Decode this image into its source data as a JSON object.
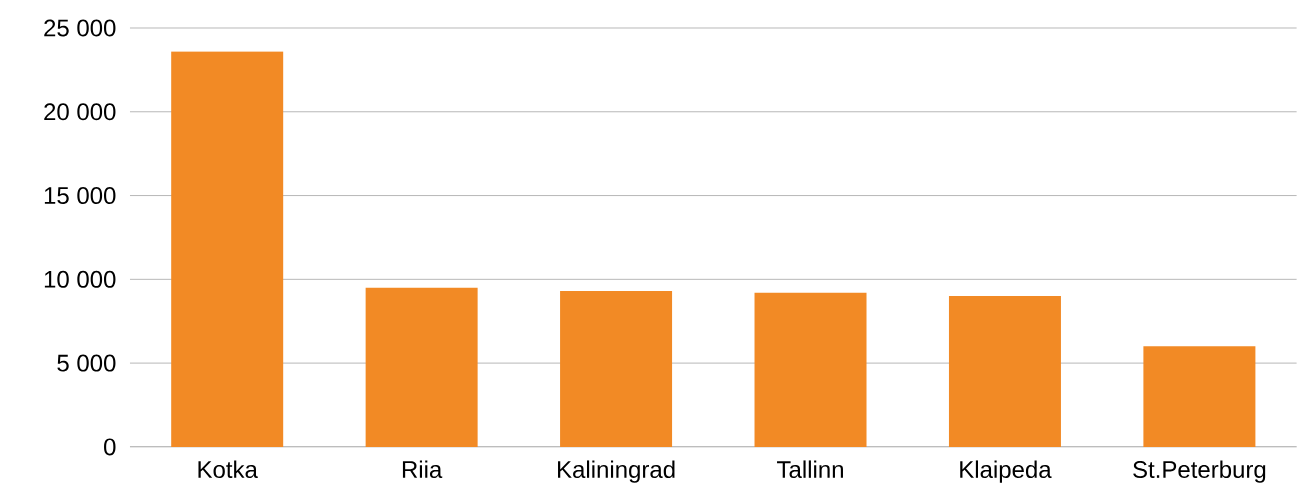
{
  "chart_data": {
    "type": "bar",
    "categories": [
      "Kotka",
      "Riia",
      "Kaliningrad",
      "Tallinn",
      "Klaipeda",
      "St.Peterburg"
    ],
    "values": [
      23600,
      9500,
      9300,
      9200,
      9000,
      6000
    ],
    "color": "#f28a25",
    "ylim": [
      0,
      25000
    ],
    "yticks": [
      0,
      {
        "value": 5000,
        "label": "5 000"
      },
      {
        "value": 10000,
        "label": "10 000"
      },
      {
        "value": 15000,
        "label": "15 000"
      },
      {
        "value": 20000,
        "label": "20 000"
      },
      {
        "value": 25000,
        "label": "25 000"
      }
    ],
    "grid": "y"
  }
}
